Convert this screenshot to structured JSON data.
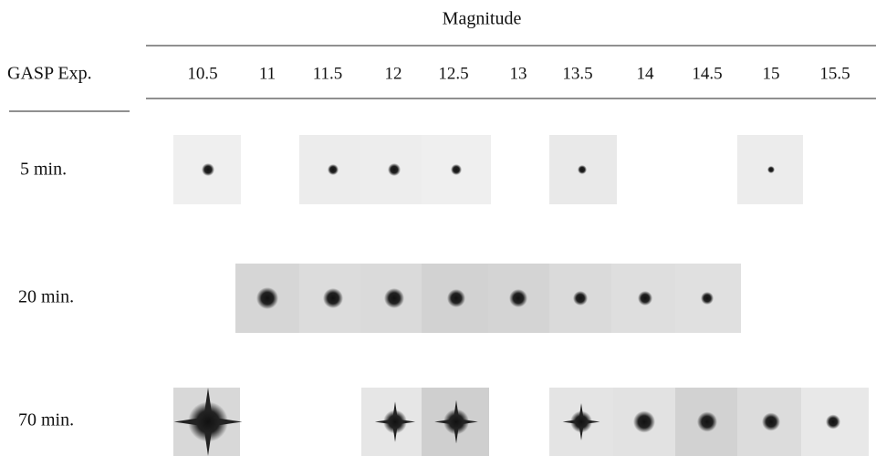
{
  "header": {
    "title": "Magnitude",
    "row_header": "GASP Exp.",
    "columns": [
      "10.5",
      "11",
      "11.5",
      "12",
      "12.5",
      "13",
      "13.5",
      "14",
      "14.5",
      "15",
      "15.5"
    ]
  },
  "rows": [
    {
      "label": "5 min."
    },
    {
      "label": "20 min."
    },
    {
      "label": "70 min."
    }
  ]
}
